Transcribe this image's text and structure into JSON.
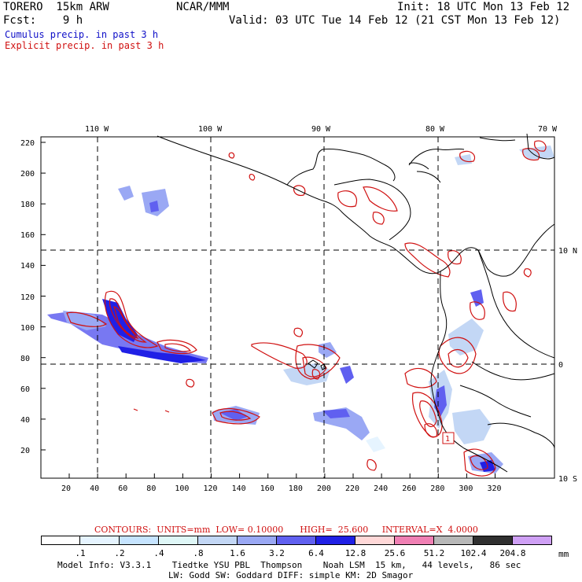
{
  "header": {
    "model": "TORERO  15km ARW",
    "org": "NCAR/MMM",
    "init": "Init: 18 UTC Mon 13 Feb 12",
    "fcst": "Fcst:    9 h",
    "valid": "Valid: 03 UTC Tue 14 Feb 12 (21 CST Mon 13 Feb 12)",
    "legend_cumulus": "Cumulus precip. in past 3 h",
    "legend_explicit": "Explicit precip. in past 3 h"
  },
  "map": {
    "top_lon_labels": [
      "110 W",
      "100 W",
      "90 W",
      "80 W",
      "70 W"
    ],
    "right_lat_labels": [
      "10 N",
      "0",
      "10 S"
    ],
    "y_ticks": [
      "220",
      "200",
      "180",
      "160",
      "140",
      "120",
      "100",
      "80",
      "60",
      "40",
      "20"
    ],
    "x_ticks": [
      "20",
      "40",
      "60",
      "80",
      "100",
      "120",
      "140",
      "160",
      "180",
      "200",
      "220",
      "240",
      "260",
      "280",
      "300",
      "320"
    ],
    "box_label": "1"
  },
  "contour_info": {
    "text": "CONTOURS:  UNITS=mm  LOW= 0.10000      HIGH=  25.600     INTERVAL=X  4.0000"
  },
  "colorbar": {
    "colors": [
      "#ffffff",
      "#e6f4ff",
      "#c6e4ff",
      "#dff7f7",
      "#c3d7f5",
      "#9aa8f4",
      "#6060f0",
      "#2020e6",
      "#ffd8d8",
      "#f080b4",
      "#b8b8b8",
      "#303030",
      "#cfa0f5"
    ],
    "labels": [
      ".1",
      ".2",
      ".4",
      ".8",
      "1.6",
      "3.2",
      "6.4",
      "12.8",
      "25.6",
      "51.2",
      "102.4",
      "204.8"
    ],
    "unit": "mm"
  },
  "footer": {
    "line1": "Model Info: V3.3.1    Tiedtke YSU PBL  Thompson    Noah LSM  15 km,   44 levels,   86 sec",
    "line2": "LW: Godd SW: Goddard DIFF: simple KM: 2D Smagor"
  },
  "colors": {
    "cumulus_blue": "#1010c8",
    "explicit_red": "#d01010",
    "coast": "#000000"
  }
}
